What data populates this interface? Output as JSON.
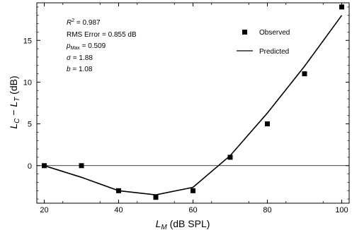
{
  "chart_data": {
    "type": "scatter",
    "xlabel": {
      "main": "L",
      "sub": "M",
      "rest": " (dB SPL)"
    },
    "ylabel": {
      "a": "L",
      "a_sub": "C",
      "op": " − ",
      "b": "L",
      "b_sub": "T",
      "rest": " (dB)"
    },
    "xlim": [
      18,
      102
    ],
    "ylim": [
      -4.5,
      19.5
    ],
    "xticks": [
      20,
      40,
      60,
      80,
      100
    ],
    "yticks": [
      0,
      5,
      10,
      15
    ],
    "zero_line": 0,
    "series": [
      {
        "name": "Observed",
        "kind": "markers",
        "x": [
          20,
          30,
          40,
          50,
          60,
          70,
          80,
          90,
          100
        ],
        "y": [
          0,
          0,
          -3,
          -3.8,
          -3,
          1,
          5,
          11,
          19
        ]
      },
      {
        "name": "Predicted",
        "kind": "line",
        "x": [
          20,
          30,
          40,
          50,
          60,
          70,
          80,
          90,
          100
        ],
        "y": [
          0,
          -1.4,
          -3,
          -3.5,
          -2.6,
          1.2,
          6.3,
          11.9,
          18
        ]
      }
    ],
    "annotations": [
      {
        "symbol": "R",
        "sup": "2",
        "value": " = 0.987"
      },
      {
        "label": "RMS Error",
        "value": " = 0.855 dB"
      },
      {
        "symbol": "p",
        "sub": "Max",
        "value": " = 0.509"
      },
      {
        "symbol": "σ",
        "value": " = 1.88"
      },
      {
        "symbol": "b",
        "value": " = 1.08"
      }
    ],
    "legend": {
      "position": "top-right",
      "entries": [
        "Observed",
        "Predicted"
      ]
    }
  }
}
